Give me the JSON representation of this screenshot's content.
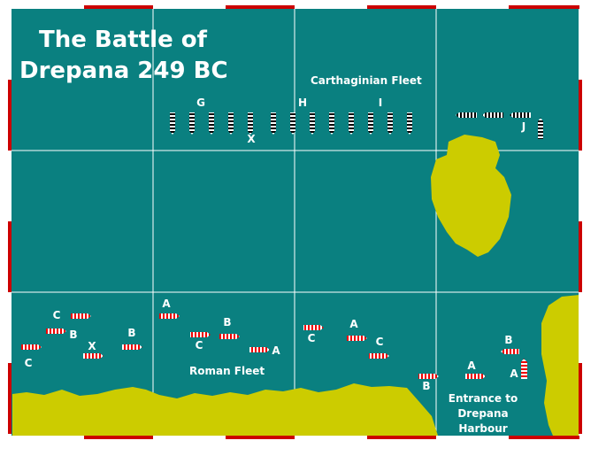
{
  "title": [
    "The Battle of",
    "Drepana 249 BC"
  ],
  "fleet_labels": {
    "carthaginian": "Carthaginian Fleet",
    "roman": "Roman Fleet"
  },
  "harbour_label": [
    "Entrance to",
    "Drepana",
    "Harbour"
  ],
  "carthaginian_markers": [
    "G",
    "H",
    "I",
    "J",
    "X"
  ],
  "roman_markers": [
    "C",
    "B",
    "C",
    "X",
    "B",
    "A",
    "B",
    "C",
    "A",
    "C",
    "A",
    "C",
    "B",
    "A",
    "B",
    "A"
  ]
}
